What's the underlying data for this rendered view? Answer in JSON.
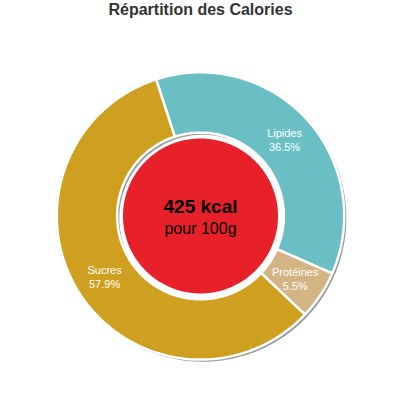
{
  "chart_data": {
    "type": "donut",
    "title": "Répartition des Calories",
    "categories": [
      "Lipides",
      "Protéines",
      "Sucres"
    ],
    "values": [
      36.5,
      5.5,
      57.9
    ],
    "value_labels": [
      "36.5%",
      "5.5%",
      "57.9%"
    ],
    "colors": [
      "#6abfc4",
      "#d4b483",
      "#cfa020"
    ],
    "data_labels": true,
    "annotations": [
      {
        "text": "425 kcal"
      },
      {
        "text": "pour 100g"
      }
    ]
  }
}
